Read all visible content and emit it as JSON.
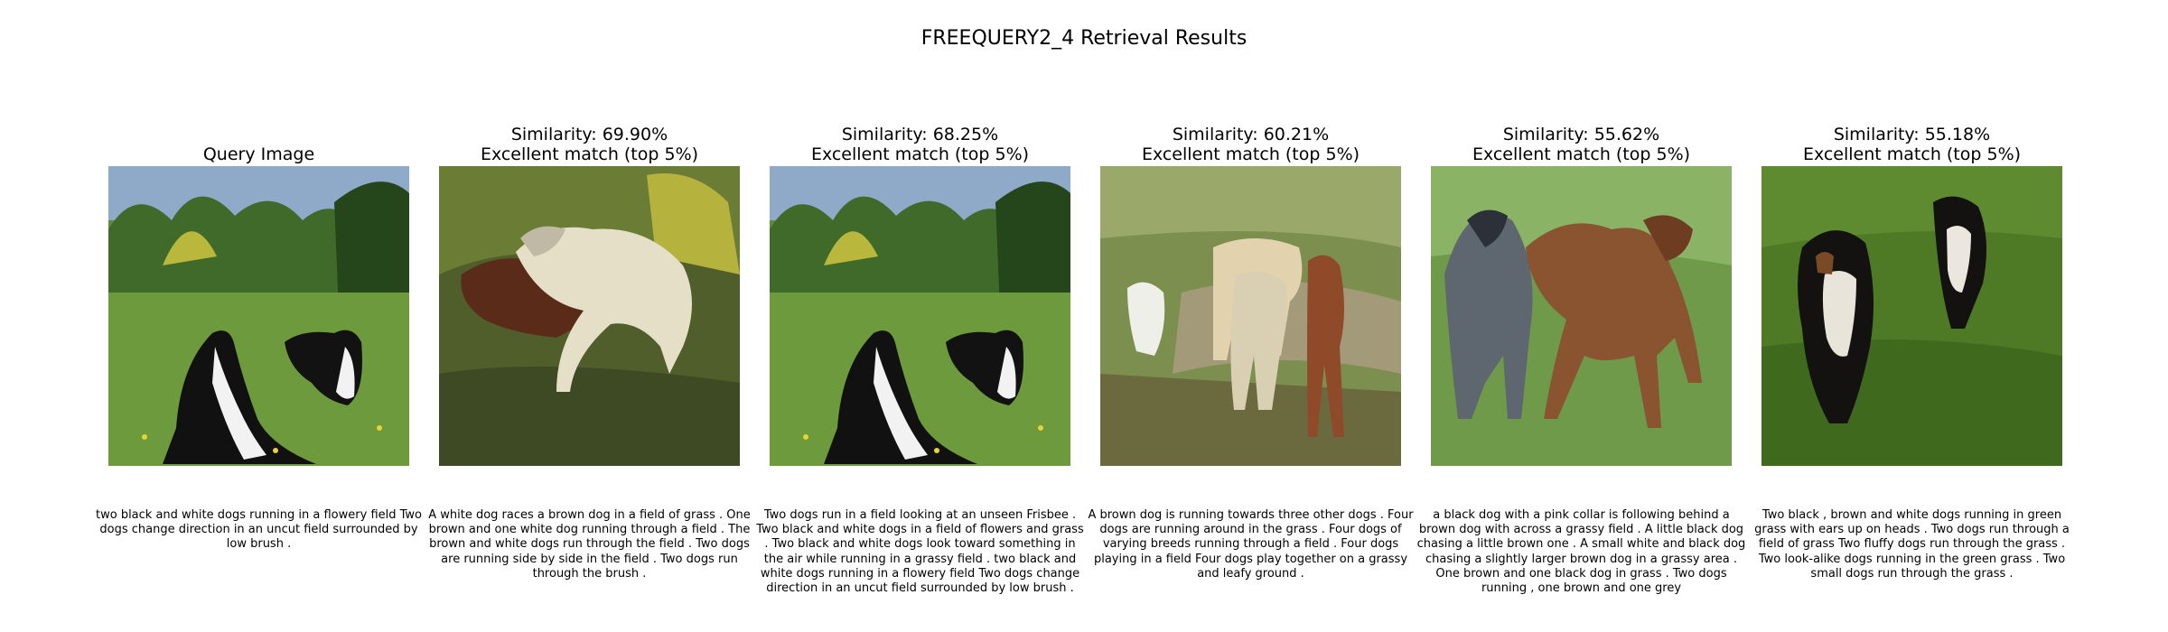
{
  "figure": {
    "title": "FREEQUERY2_4 Retrieval Results"
  },
  "query": {
    "title": "Query Image",
    "caption": "two black and white dogs running in a flowery field Two dogs change direction in an uncut field surrounded by low brush ."
  },
  "results": [
    {
      "similarity": "Similarity: 69.90%",
      "rating": "Excellent match (top 5%)",
      "caption": "A white dog races a brown dog in a field of grass . One brown and one white dog running through a field . The brown and white dogs run through the field . Two dogs are running side by side in the field . Two dogs run through the brush ."
    },
    {
      "similarity": "Similarity: 68.25%",
      "rating": "Excellent match (top 5%)",
      "caption": "Two dogs run in a field looking at an unseen Frisbee . Two black and white dogs in a field of flowers and grass . Two black and white dogs look toward something in the air while running in a grassy field . two black and white dogs running in a flowery field Two dogs change direction in an uncut field surrounded by low brush ."
    },
    {
      "similarity": "Similarity: 60.21%",
      "rating": "Excellent match (top 5%)",
      "caption": "A brown dog is running towards three other dogs . Four dogs are running around in the grass . Four dogs of varying breeds running through a field . Four dogs playing in a field Four dogs play together on a grassy and leafy ground ."
    },
    {
      "similarity": "Similarity: 55.62%",
      "rating": "Excellent match (top 5%)",
      "caption": "a black dog with a pink collar is following behind a brown dog with across a grassy field . A little black dog chasing a little brown one . A small white and black dog chasing a slightly larger brown dog in a grassy area . One brown and one black dog in grass . Two dogs running , one brown and one grey"
    },
    {
      "similarity": "Similarity: 55.18%",
      "rating": "Excellent match (top 5%)",
      "caption": "Two black , brown and white dogs running in green grass with ears up on heads . Two dogs run through a field of grass Two fluffy dogs run through the grass . Two look-alike dogs running in the green grass . Two small dogs run through the grass ."
    }
  ]
}
